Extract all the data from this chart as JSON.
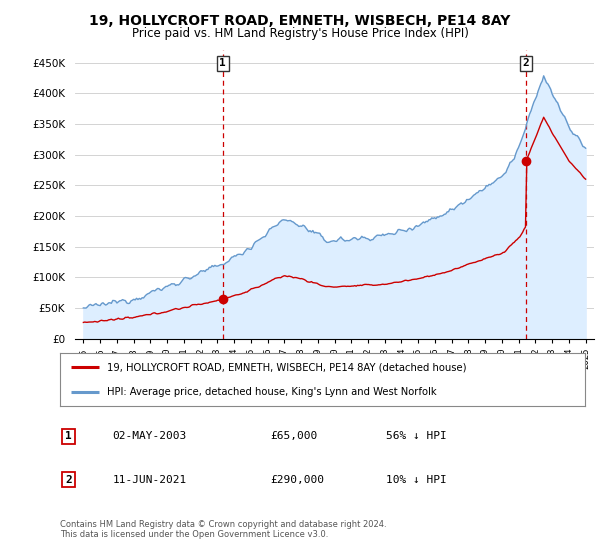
{
  "title": "19, HOLLYCROFT ROAD, EMNETH, WISBECH, PE14 8AY",
  "subtitle": "Price paid vs. HM Land Registry's House Price Index (HPI)",
  "legend_label_red": "19, HOLLYCROFT ROAD, EMNETH, WISBECH, PE14 8AY (detached house)",
  "legend_label_blue": "HPI: Average price, detached house, King's Lynn and West Norfolk",
  "footnote": "Contains HM Land Registry data © Crown copyright and database right 2024.\nThis data is licensed under the Open Government Licence v3.0.",
  "sale1_label": "1",
  "sale1_date": "02-MAY-2003",
  "sale1_price": "£65,000",
  "sale1_hpi": "56% ↓ HPI",
  "sale2_label": "2",
  "sale2_date": "11-JUN-2021",
  "sale2_price": "£290,000",
  "sale2_hpi": "10% ↓ HPI",
  "sale1_x": 2003.33,
  "sale1_y": 65000,
  "sale2_x": 2021.44,
  "sale2_y": 290000,
  "ylim": [
    0,
    470000
  ],
  "xlim": [
    1994.5,
    2025.5
  ],
  "red_color": "#cc0000",
  "blue_color": "#6699cc",
  "blue_fill_color": "#ddeeff",
  "background_color": "#ffffff",
  "grid_color": "#cccccc"
}
